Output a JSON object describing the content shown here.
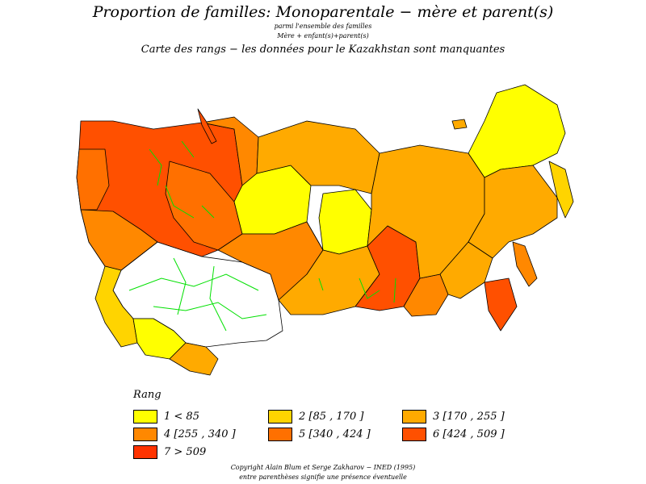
{
  "header": {
    "title": "Proportion de familles: Monoparentale  −  mère et parent(s)",
    "subtitle_line1": "parmi l'ensemble des familles",
    "subtitle_line2": "Mère + enfant(s)+parent(s)",
    "subtitle_line3": "Carte des rangs − les données pour le Kazakhstan sont manquantes"
  },
  "colors": {
    "rank1": "#ffff00",
    "rank2": "#ffd400",
    "rank3": "#ffaa00",
    "rank4": "#ff8800",
    "rank5": "#ff7000",
    "rank6": "#ff5000",
    "rank7": "#ff3300",
    "missing": "#ffffff",
    "border_green": "#00e000"
  },
  "legend": {
    "title": "Rang",
    "items": [
      {
        "label": "1  <  85"
      },
      {
        "label": "2 [85 ,  170 ]"
      },
      {
        "label": "3 [170 ,  255 ]"
      },
      {
        "label": "4 [255 ,  340 ]"
      },
      {
        "label": "5 [340 ,  424 ]"
      },
      {
        "label": "6 [424 ,  509 ]"
      },
      {
        "label": "7  >  509"
      }
    ]
  },
  "footer": {
    "copyright": "Copyright Alain Blum et Serge Zakharov  −  INED (1995)",
    "note": "entre parenthèses signifie une présence éventuelle"
  }
}
